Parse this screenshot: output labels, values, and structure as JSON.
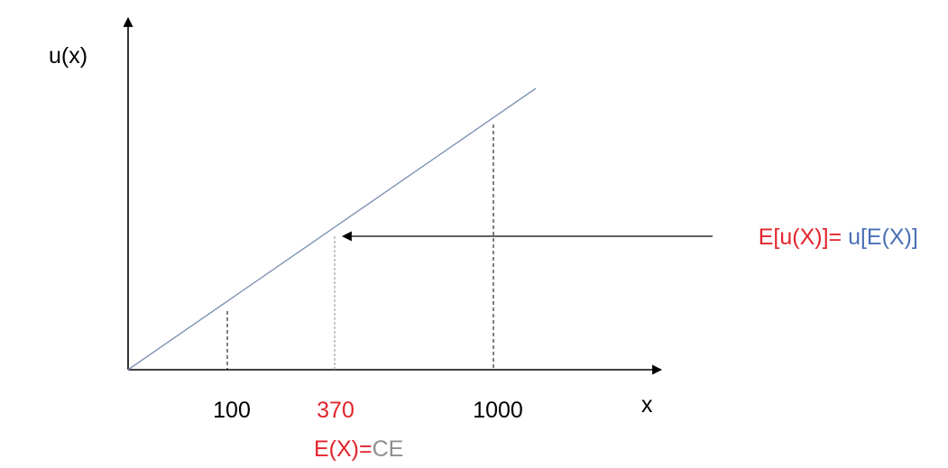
{
  "y_axis_label": "u(x)",
  "x_axis_label": "x",
  "tick_values": {
    "low": "100",
    "mid": "370",
    "high": "1000"
  },
  "mid_caption": {
    "left": "E(X)=",
    "right": "CE"
  },
  "annotation": {
    "left": "E[u(X)]=",
    "right": " u[E(X)]"
  },
  "colors": {
    "axis": "#000000",
    "utility_line": "#7f93b3",
    "red": "#e2242c",
    "blue": "#4a6fb5",
    "gray": "#8f8f8f"
  }
}
